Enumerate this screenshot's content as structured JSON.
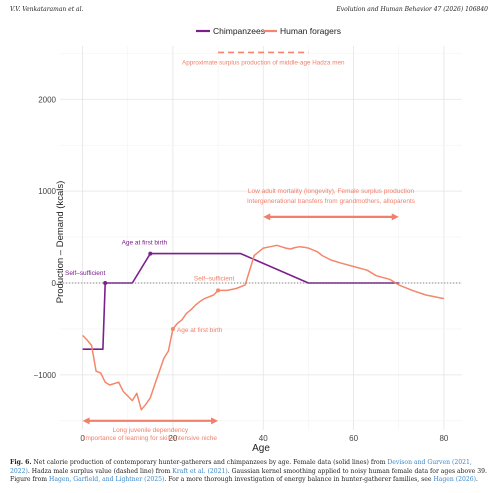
{
  "header": {
    "left": "V.V. Venkataraman et al.",
    "right": "Evolution and Human Behavior 47 (2026) 106840"
  },
  "chart_data": {
    "type": "line",
    "xlabel": "Age",
    "ylabel": "Production – Demand (kcals)",
    "xlim": [
      -5,
      84
    ],
    "ylim": [
      -1600,
      2580
    ],
    "xticks": [
      0,
      20,
      40,
      60,
      80
    ],
    "yticks": [
      -1000,
      0,
      1000,
      2000
    ],
    "ytick_labels": [
      "−1000",
      "0",
      "1000",
      "2000"
    ],
    "grid": true,
    "legend_position": "top",
    "colors": {
      "chimp": "#7b1f8c",
      "human": "#f4876b",
      "annot": "#f07f6b"
    },
    "legend": [
      "Chimpanzees",
      "Human foragers"
    ],
    "series": [
      {
        "name": "Chimpanzees",
        "color": "#7b1f8c",
        "x": [
          0,
          4.5,
          5,
          11,
          15,
          35,
          50,
          70
        ],
        "y": [
          -720,
          -720,
          0,
          0,
          320,
          320,
          0,
          0
        ]
      },
      {
        "name": "Human foragers",
        "color": "#f4876b",
        "x": [
          0,
          1,
          2,
          3,
          4,
          5,
          6,
          8,
          9,
          10,
          11,
          12,
          13,
          14,
          15,
          16,
          17,
          18,
          19,
          20,
          21,
          22,
          23,
          24,
          25,
          26,
          27,
          28,
          29,
          30,
          32,
          34,
          36,
          38,
          39,
          40,
          41,
          42,
          43,
          44,
          45,
          46,
          47,
          48,
          49,
          50,
          51,
          52,
          53,
          55,
          57,
          60,
          63,
          65,
          68,
          70,
          73,
          76,
          80
        ],
        "y": [
          -570,
          -620,
          -680,
          -960,
          -980,
          -1080,
          -1110,
          -1080,
          -1180,
          -1230,
          -1280,
          -1200,
          -1380,
          -1320,
          -1250,
          -1100,
          -960,
          -820,
          -740,
          -500,
          -440,
          -400,
          -330,
          -290,
          -240,
          -200,
          -170,
          -150,
          -130,
          -80,
          -80,
          -60,
          -20,
          300,
          340,
          380,
          390,
          400,
          410,
          395,
          380,
          370,
          385,
          395,
          390,
          380,
          360,
          340,
          300,
          250,
          220,
          180,
          140,
          80,
          40,
          -20,
          -80,
          -130,
          -170
        ]
      }
    ],
    "surplus": {
      "y": 2510,
      "x_start": 30,
      "x_end": 50,
      "label": "Approximate surplus production of middle-age Hadza men"
    },
    "points": [
      {
        "name": "chimp-self-sufficient",
        "x": 5,
        "y": 0,
        "series": "Chimpanzees",
        "label": "Self–sufficient"
      },
      {
        "name": "chimp-age-first-birth",
        "x": 15,
        "y": 320,
        "series": "Chimpanzees",
        "label": "Age at first birth"
      },
      {
        "name": "human-age-first-birth",
        "x": 20,
        "y": -500,
        "series": "Human foragers",
        "label": "Age at first birth"
      },
      {
        "name": "human-self-sufficient",
        "x": 30,
        "y": -80,
        "series": "Human foragers",
        "label": "Self–sufficient"
      }
    ],
    "spans": [
      {
        "name": "long-juvenile-dependency",
        "x_start": 0,
        "x_end": 30,
        "y": -1500,
        "line1": "Long juvenile dependency",
        "line2": "Importance of learning for skill–intensive niche"
      },
      {
        "name": "low-adult-mortality",
        "x_start": 40,
        "x_end": 70,
        "y": 720,
        "line1": "Low adult mortality (longevity), Female surplus production",
        "line2": "Intergenerational transfers from grandmothers, alloparents"
      }
    ]
  },
  "caption": {
    "label": "Fig. 6.",
    "text1": " Net calorie production of contemporary hunter-gatherers and chimpanzees by age. Female data (solid lines) from ",
    "ref1": "Devison and Gurven (2021, 2022)",
    "text2": ". Hadza male surplus value (dashed line) from ",
    "ref2": "Kraft et al. (2021)",
    "text3": ". Gaussian kernel smoothing applied to noisy human female data for ages above 39. Figure from ",
    "ref3": "Hagen, Garfield, and Lightner (2025)",
    "text4": ". For a more thorough investigation of energy balance in hunter-gatherer families, see ",
    "ref4": "Hagen (2026)",
    "text5": "."
  }
}
